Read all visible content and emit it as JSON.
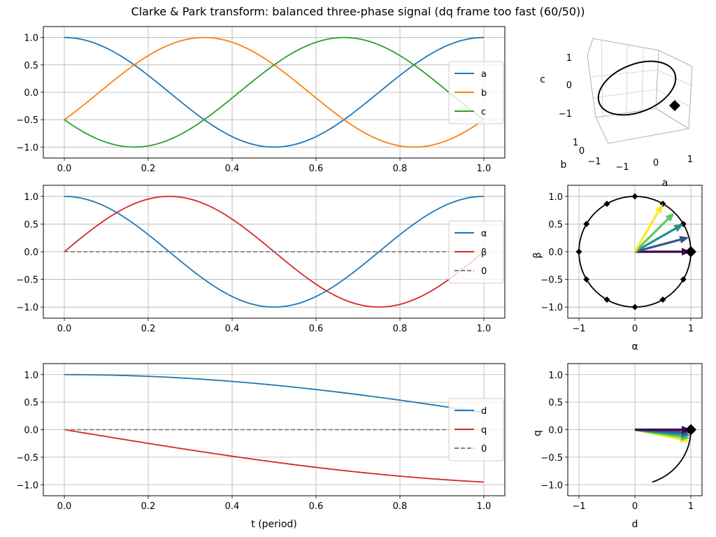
{
  "title": "Clarke & Park transform: balanced three-phase signal (dq frame too fast (60/50))",
  "colors": {
    "a": "#1f77b4",
    "b": "#ff7f0e",
    "c": "#2ca02c",
    "alpha": "#1f77b4",
    "beta": "#d62728",
    "zero": "#808080",
    "d": "#1f77b4",
    "q": "#d62728",
    "locus": "#000000",
    "arrows": [
      "#440154",
      "#3b528b",
      "#21918c",
      "#5ec962",
      "#fde725"
    ]
  },
  "chart_data": [
    {
      "id": "abc",
      "type": "line",
      "x_ticks": [
        0,
        0.2,
        0.4,
        0.6,
        0.8,
        1.0
      ],
      "x_tick_labels": [
        "0.0",
        "0.2",
        "0.4",
        "0.6",
        "0.8",
        "1.0"
      ],
      "y_ticks": [
        -1,
        -0.5,
        0,
        0.5,
        1
      ],
      "y_tick_labels": [
        "−1.0",
        "−0.5",
        "0.0",
        "0.5",
        "1.0"
      ],
      "xlim": [
        -0.05,
        1.05
      ],
      "ylim": [
        -1.2,
        1.2
      ],
      "grid": true,
      "legend_placement": "right",
      "series": [
        {
          "name": "a",
          "color_key": "a",
          "formula": "cos(2πt)"
        },
        {
          "name": "b",
          "color_key": "b",
          "formula": "cos(2πt − 2π/3)"
        },
        {
          "name": "c",
          "color_key": "c",
          "formula": "cos(2πt + 2π/3)"
        }
      ]
    },
    {
      "id": "abc3d",
      "type": "scatter",
      "xlabel": "a",
      "ylabel": "b",
      "zlabel": "c",
      "x_tick_labels": [
        "−1",
        "0",
        "1"
      ],
      "y_tick_labels": [
        "−1",
        "0",
        "1"
      ],
      "z_tick_labels": [
        "−1",
        "0",
        "1"
      ],
      "marker_t": 1.0
    },
    {
      "id": "alphabeta",
      "type": "line",
      "x_ticks": [
        0,
        0.2,
        0.4,
        0.6,
        0.8,
        1.0
      ],
      "x_tick_labels": [
        "0.0",
        "0.2",
        "0.4",
        "0.6",
        "0.8",
        "1.0"
      ],
      "y_ticks": [
        -1,
        -0.5,
        0,
        0.5,
        1
      ],
      "y_tick_labels": [
        "−1.0",
        "−0.5",
        "0.0",
        "0.5",
        "1.0"
      ],
      "xlim": [
        -0.05,
        1.05
      ],
      "ylim": [
        -1.2,
        1.2
      ],
      "grid": true,
      "legend_placement": "right",
      "series": [
        {
          "name": "α",
          "color_key": "alpha",
          "formula": "cos(2πt)"
        },
        {
          "name": "β",
          "color_key": "beta",
          "formula": "sin(2πt)"
        },
        {
          "name": "0",
          "color_key": "zero",
          "dashed": true,
          "formula": "0"
        }
      ]
    },
    {
      "id": "alphabeta_plane",
      "type": "scatter",
      "xlabel": "α",
      "ylabel": "β",
      "x_ticks": [
        -1,
        0,
        1
      ],
      "x_tick_labels": [
        "−1",
        "0",
        "1"
      ],
      "y_ticks": [
        -1,
        -0.5,
        0,
        0.5,
        1
      ],
      "y_tick_labels": [
        "−1.0",
        "−0.5",
        "0.0",
        "0.5",
        "1.0"
      ],
      "xlim": [
        -1.2,
        1.2
      ],
      "ylim": [
        -1.2,
        1.2
      ],
      "grid": true,
      "marker_angles_deg": [
        0,
        30,
        60,
        90,
        120,
        150,
        180,
        210,
        240,
        270,
        300,
        330
      ],
      "arrow_angles_deg": [
        0,
        15,
        30,
        45,
        60
      ]
    },
    {
      "id": "dq",
      "type": "line",
      "x_ticks": [
        0,
        0.2,
        0.4,
        0.6,
        0.8,
        1.0
      ],
      "x_tick_labels": [
        "0.0",
        "0.2",
        "0.4",
        "0.6",
        "0.8",
        "1.0"
      ],
      "y_ticks": [
        -1,
        -0.5,
        0,
        0.5,
        1
      ],
      "y_tick_labels": [
        "−1.0",
        "−0.5",
        "0.0",
        "0.5",
        "1.0"
      ],
      "xlim": [
        -0.05,
        1.05
      ],
      "ylim": [
        -1.2,
        1.2
      ],
      "grid": true,
      "xlabel": "t (period)",
      "legend_placement": "right",
      "series": [
        {
          "name": "d",
          "color_key": "d",
          "formula": "cos(2π·0.2·t)"
        },
        {
          "name": "q",
          "color_key": "q",
          "formula": "−sin(2π·0.2·t)"
        },
        {
          "name": "0",
          "color_key": "zero",
          "dashed": true,
          "formula": "0"
        }
      ]
    },
    {
      "id": "dq_plane",
      "type": "scatter",
      "xlabel": "d",
      "ylabel": "q",
      "x_ticks": [
        -1,
        0,
        1
      ],
      "x_tick_labels": [
        "−1",
        "0",
        "1"
      ],
      "y_ticks": [
        -1,
        -0.5,
        0,
        0.5,
        1
      ],
      "y_tick_labels": [
        "−1.0",
        "−0.5",
        "0.0",
        "0.5",
        "1.0"
      ],
      "xlim": [
        -1.2,
        1.2
      ],
      "ylim": [
        -1.2,
        1.2
      ],
      "grid": true,
      "locus_end_angle_deg": -72,
      "arrow_angles_deg": [
        0,
        -3,
        -6,
        -9,
        -12
      ]
    }
  ]
}
